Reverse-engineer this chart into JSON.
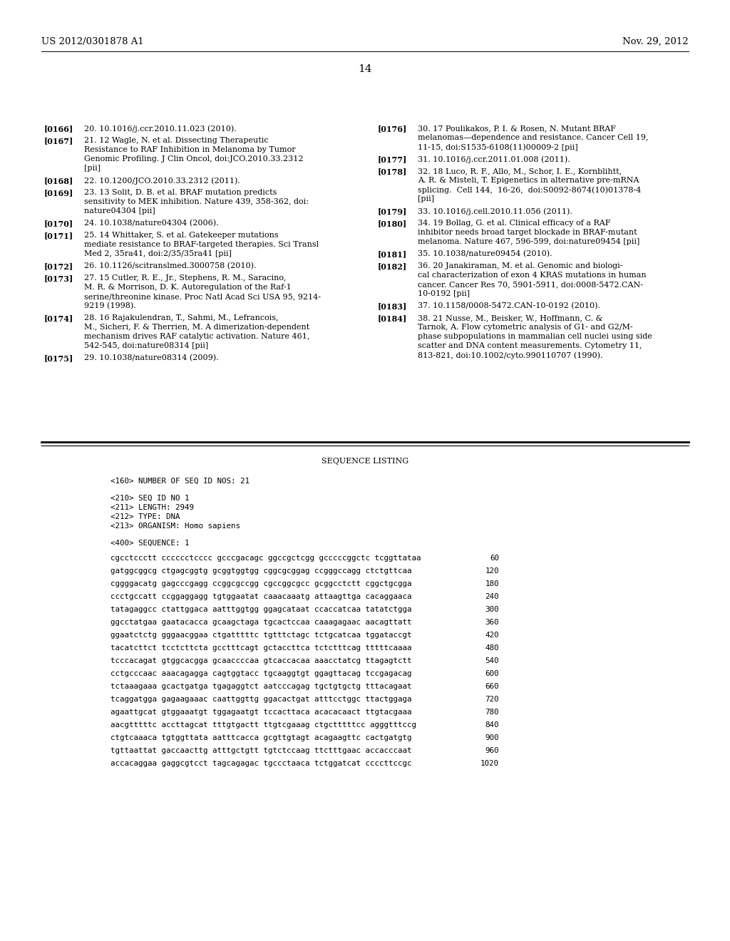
{
  "background_color": "#ffffff",
  "header_left": "US 2012/0301878 A1",
  "header_right": "Nov. 29, 2012",
  "page_number": "14",
  "left_refs": [
    {
      "tag": "[0166]",
      "lines": [
        "20. 10.1016/j.ccr.2010.11.023 (2010)."
      ]
    },
    {
      "tag": "[0167]",
      "lines": [
        "21. 12 Wagle, N. et al. Dissecting Therapeutic",
        "Resistance to RAF Inhibition in Melanoma by Tumor",
        "Genomic Profiling. J Clin Oncol, doi:JCO.2010.33.2312",
        "[pii]"
      ]
    },
    {
      "tag": "[0168]",
      "lines": [
        "22. 10.1200/JCO.2010.33.2312 (2011)."
      ]
    },
    {
      "tag": "[0169]",
      "lines": [
        "23. 13 Solit, D. B. et al. BRAF mutation predicts",
        "sensitivity to MEK inhibition. Nature 439, 358-362, doi:",
        "nature04304 [pii]"
      ]
    },
    {
      "tag": "[0170]",
      "lines": [
        "24. 10.1038/nature04304 (2006)."
      ]
    },
    {
      "tag": "[0171]",
      "lines": [
        "25. 14 Whittaker, S. et al. Gatekeeper mutations",
        "mediate resistance to BRAF-targeted therapies. Sci Transl",
        "Med 2, 35ra41, doi:2/35/35ra41 [pii]"
      ]
    },
    {
      "tag": "[0172]",
      "lines": [
        "26. 10.1126/scitranslmed.3000758 (2010)."
      ]
    },
    {
      "tag": "[0173]",
      "lines": [
        "27. 15 Cutler, R. E., Jr., Stephens, R. M., Saracino,",
        "M. R. & Morrison, D. K. Autoregulation of the Raf-1",
        "serine/threonine kinase. Proc Natl Acad Sci USA 95, 9214-",
        "9219 (1998)."
      ]
    },
    {
      "tag": "[0174]",
      "lines": [
        "28. 16 Rajakulendran, T., Sahmi, M., Lefrancois,",
        "M., Sicheri, F. & Therrien, M. A dimerization-dependent",
        "mechanism drives RAF catalytic activation. Nature 461,",
        "542-545, doi:nature08314 [pii]"
      ]
    },
    {
      "tag": "[0175]",
      "lines": [
        "29. 10.1038/nature08314 (2009)."
      ]
    }
  ],
  "right_refs": [
    {
      "tag": "[0176]",
      "lines": [
        "30. 17 Poulikakos, P. I. & Rosen, N. Mutant BRAF",
        "melanomas—dependence and resistance. Cancer Cell 19,",
        "11-15, doi:S1535-6108(11)00009-2 [pii]"
      ]
    },
    {
      "tag": "[0177]",
      "lines": [
        "31. 10.1016/j.ccr.2011.01.008 (2011)."
      ]
    },
    {
      "tag": "[0178]",
      "lines": [
        "32. 18 Luco, R. F., Allo, M., Schor, I. E., Kornblihtt,",
        "A. R. & Misteli, T. Epigenetics in alternative pre-mRNA",
        "splicing.  Cell 144,  16-26,  doi:S0092-8674(10)01378-4",
        "[pii]"
      ]
    },
    {
      "tag": "[0179]",
      "lines": [
        "33. 10.1016/j.cell.2010.11.056 (2011)."
      ]
    },
    {
      "tag": "[0180]",
      "lines": [
        "34. 19 Bollag, G. et al. Clinical efficacy of a RAF",
        "inhibitor needs broad target blockade in BRAF-mutant",
        "melanoma. Nature 467, 596-599, doi:nature09454 [pii]"
      ]
    },
    {
      "tag": "[0181]",
      "lines": [
        "35. 10.1038/nature09454 (2010)."
      ]
    },
    {
      "tag": "[0182]",
      "lines": [
        "36. 20 Janakiraman, M. et al. Genomic and biologi-",
        "cal characterization of exon 4 KRAS mutations in human",
        "cancer. Cancer Res 70, 5901-5911, doi:0008-5472.CAN-",
        "10-0192 [pii]"
      ]
    },
    {
      "tag": "[0183]",
      "lines": [
        "37. 10.1158/0008-5472.CAN-10-0192 (2010)."
      ]
    },
    {
      "tag": "[0184]",
      "lines": [
        "38. 21 Nusse, M., Beisker, W., Hoffmann, C. &",
        "Tarnok, A. Flow cytometric analysis of G1- and G2/M-",
        "phase subpopulations in mammalian cell nuclei using side",
        "scatter and DNA content measurements. Cytometry 11,",
        "813-821, doi:10.1002/cyto.990110707 (1990)."
      ]
    }
  ],
  "seq_header": "SEQUENCE LISTING",
  "seq_meta": [
    "<160> NUMBER OF SEQ ID NOS: 21",
    "",
    "<210> SEQ ID NO 1",
    "<211> LENGTH: 2949",
    "<212> TYPE: DNA",
    "<213> ORGANISM: Homo sapiens",
    "",
    "<400> SEQUENCE: 1"
  ],
  "seq_lines": [
    {
      "seq": "cgcctccctt cccccctcccc gcccgacagc ggccgctcgg gcccccggctc tcggttataa",
      "num": "60"
    },
    {
      "seq": "gatggcggcg ctgagcggtg gcggtggtgg cggcgcggag ccgggccagg ctctgttcaa",
      "num": "120"
    },
    {
      "seq": "cggggacatg gagcccgagg ccggcgccgg cgccggcgcc gcggcctctt cggctgcgga",
      "num": "180"
    },
    {
      "seq": "ccctgccatt ccggaggagg tgtggaatat caaacaaatg attaagttga cacaggaaca",
      "num": "240"
    },
    {
      "seq": "tatagaggcc ctattggaca aatttggtgg ggagcataat ccaccatcaa tatatctgga",
      "num": "300"
    },
    {
      "seq": "ggcctatgaa gaatacacca gcaagctaga tgcactccaa caaagagaac aacagttatt",
      "num": "360"
    },
    {
      "seq": "ggaatctctg gggaacggaa ctgatttttc tgtttctagc tctgcatcaa tggataccgt",
      "num": "420"
    },
    {
      "seq": "tacatcttct tcctcttcta gcctttcagt gctaccttca tctctttcag tttttcaaaa",
      "num": "480"
    },
    {
      "seq": "tcccacagat gtggcacgga gcaaccccaa gtcaccacaa aaacctatcg ttagagtctt",
      "num": "540"
    },
    {
      "seq": "cctgcccaac aaacagagga cagtggtacc tgcaaggtgt ggagttacag tccgagacag",
      "num": "600"
    },
    {
      "seq": "tctaaagaaa gcactgatga tgagaggtct aatcccagag tgctgtgctg tttacagaat",
      "num": "660"
    },
    {
      "seq": "tcaggatgga gagaagaaac caattggttg ggacactgat atttcctggc ttactggaga",
      "num": "720"
    },
    {
      "seq": "agaattgcat gtggaaatgt tggagaatgt tccacttaca acacacaact ttgtacgaaa",
      "num": "780"
    },
    {
      "seq": "aacgtttttc accttagcat tttgtgactt ttgtcgaaag ctgctttttcc agggtttccg",
      "num": "840"
    },
    {
      "seq": "ctgtcaaaca tgtggttata aatttcacca gcgttgtagt acagaagttc cactgatgtg",
      "num": "900"
    },
    {
      "seq": "tgttaattat gaccaacttg atttgctgtt tgtctccaag ttctttgaac accacccaat",
      "num": "960"
    },
    {
      "seq": "accacaggaa gaggcgtcct tagcagagac tgccctaaca tctggatcat ccccttccgc",
      "num": "1020"
    }
  ]
}
